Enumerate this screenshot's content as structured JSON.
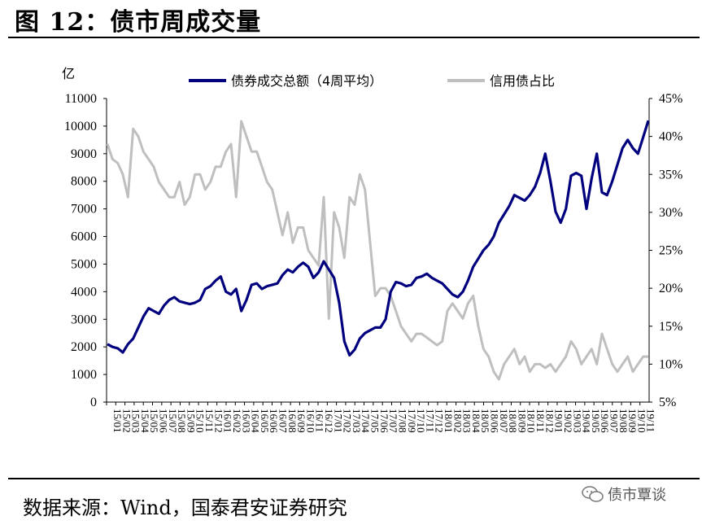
{
  "header": {
    "title": "图 12：债市周成交量"
  },
  "footer": {
    "source": "数据来源：Wind，国泰君安证券研究",
    "watermark": "债市覃谈",
    "watermark_icon": "wechat-icon"
  },
  "chart_data": {
    "type": "line",
    "title": "",
    "ylabel_left": "亿",
    "ylim_left": [
      0,
      11000
    ],
    "yticks_left": [
      "0",
      "1000",
      "2000",
      "3000",
      "4000",
      "5000",
      "6000",
      "7000",
      "8000",
      "9000",
      "10000",
      "11000"
    ],
    "ylim_right": [
      5,
      45
    ],
    "yticks_right": [
      "5%",
      "10%",
      "15%",
      "20%",
      "25%",
      "30%",
      "35%",
      "40%",
      "45%"
    ],
    "x_ticks": [
      "15/01",
      "15/02",
      "15/03",
      "15/04",
      "15/05",
      "15/06",
      "15/07",
      "15/08",
      "15/09",
      "15/10",
      "15/11",
      "15/12",
      "16/01",
      "16/02",
      "16/03",
      "16/04",
      "16/05",
      "16/06",
      "16/07",
      "16/08",
      "16/09",
      "16/10",
      "16/11",
      "16/12",
      "17/01",
      "17/02",
      "17/03",
      "17/04",
      "17/05",
      "17/06",
      "17/07",
      "17/08",
      "17/09",
      "17/10",
      "17/11",
      "17/12",
      "18/01",
      "18/02",
      "18/03",
      "18/04",
      "18/05",
      "18/06",
      "18/07",
      "18/08",
      "18/09",
      "18/10",
      "18/11",
      "18/12",
      "19/01",
      "19/02",
      "19/03",
      "19/04",
      "19/05",
      "19/06",
      "19/07",
      "19/08",
      "19/09",
      "19/10",
      "19/11"
    ],
    "legend_position": "top",
    "series": [
      {
        "name": "债券成交总额（4周平均）",
        "axis": "left",
        "color": "#00007f",
        "values": [
          2100,
          2000,
          1950,
          1800,
          2100,
          2300,
          2700,
          3100,
          3400,
          3300,
          3200,
          3500,
          3700,
          3800,
          3650,
          3600,
          3550,
          3600,
          3700,
          4100,
          4200,
          4400,
          4550,
          4000,
          3900,
          4100,
          3300,
          3700,
          4250,
          4300,
          4100,
          4200,
          4250,
          4300,
          4600,
          4800,
          4700,
          4900,
          5050,
          4900,
          4500,
          4700,
          5100,
          4800,
          4500,
          3600,
          2200,
          1700,
          1900,
          2300,
          2500,
          2600,
          2700,
          2700,
          3000,
          4000,
          4350,
          4300,
          4200,
          4250,
          4500,
          4550,
          4650,
          4500,
          4400,
          4300,
          4100,
          3900,
          3800,
          4000,
          4400,
          4900,
          5200,
          5500,
          5700,
          6000,
          6500,
          6800,
          7100,
          7500,
          7400,
          7300,
          7500,
          7800,
          8300,
          9000,
          8000,
          6900,
          6500,
          7000,
          8200,
          8300,
          8200,
          7000,
          8100,
          9000,
          7600,
          7500,
          8000,
          8600,
          9200,
          9500,
          9200,
          9000,
          9600,
          10200
        ]
      },
      {
        "name": "信用债占比",
        "axis": "right",
        "color": "#bfbfbf",
        "values": [
          39,
          37,
          36.5,
          35,
          32,
          41,
          40,
          38,
          37,
          36,
          34,
          33,
          32,
          32,
          34,
          31,
          32,
          35,
          35,
          33,
          34,
          36,
          36,
          38,
          39,
          32,
          42,
          40,
          38,
          38,
          36,
          34,
          33,
          30,
          27,
          30,
          26,
          28,
          28,
          25,
          24,
          23,
          32,
          16,
          30,
          28,
          24,
          32,
          31,
          35,
          33,
          26,
          19,
          20,
          20,
          19,
          17,
          15,
          14,
          13,
          14,
          14,
          13.5,
          13,
          12.5,
          13,
          17,
          18,
          17,
          16,
          18,
          19,
          15,
          12,
          11,
          9,
          8,
          10,
          11,
          12,
          10,
          11,
          9,
          10,
          10,
          9.5,
          10,
          9,
          10,
          11,
          13,
          12,
          10,
          11,
          12,
          10,
          14,
          12,
          10,
          9,
          10,
          11,
          9,
          10,
          11,
          11
        ]
      }
    ]
  }
}
